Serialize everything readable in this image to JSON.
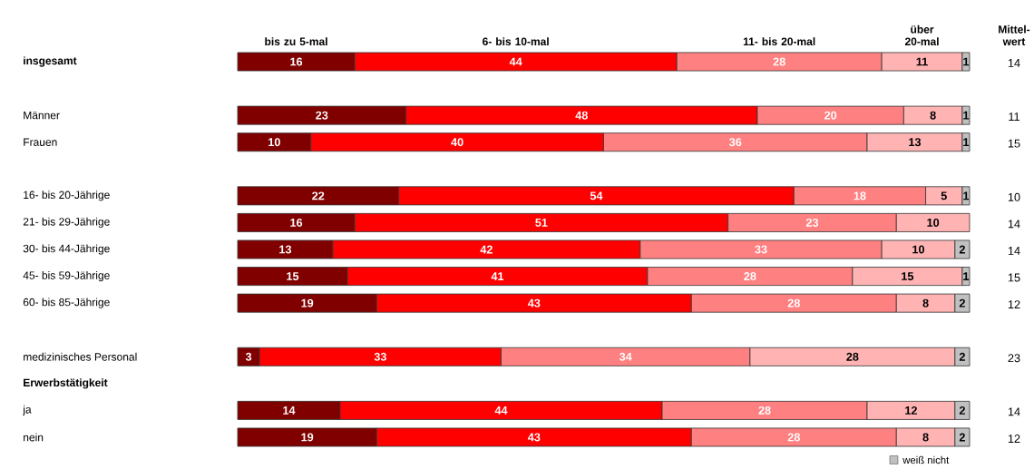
{
  "chart_data": {
    "type": "bar",
    "orientation": "horizontal",
    "stacked": true,
    "data_labels": true,
    "legend": "bottom right",
    "categories": [
      "insgesamt",
      null,
      "Männer",
      "Frauen",
      null,
      "16- bis 20-Jährige",
      "21- bis 29-Jährige",
      "30- bis 44-Jährige",
      "45- bis 59-Jährige",
      "60- bis 85-Jährige",
      null,
      "medizinisches Personal",
      "Erwerbstätigkeit",
      "ja",
      "nein"
    ],
    "series": [
      {
        "name": "bis zu 5-mal",
        "color": "#800000",
        "values": [
          16,
          null,
          23,
          10,
          null,
          22,
          16,
          13,
          15,
          19,
          null,
          3,
          null,
          14,
          19
        ]
      },
      {
        "name": "6- bis 10-mal",
        "color": "#ff0000",
        "values": [
          44,
          null,
          48,
          40,
          null,
          54,
          51,
          42,
          41,
          43,
          null,
          33,
          null,
          44,
          43
        ]
      },
      {
        "name": "11- bis 20-mal",
        "color": "#ff8080",
        "values": [
          28,
          null,
          20,
          36,
          null,
          18,
          23,
          33,
          28,
          28,
          null,
          34,
          null,
          28,
          28
        ]
      },
      {
        "name": "über 20-mal",
        "color": "#ffb3b3",
        "values": [
          11,
          null,
          8,
          13,
          null,
          5,
          10,
          10,
          15,
          8,
          null,
          28,
          null,
          12,
          8
        ]
      },
      {
        "name": "weiß nicht",
        "color": "#c0c0c0",
        "values": [
          1,
          null,
          1,
          1,
          null,
          1,
          null,
          2,
          1,
          2,
          null,
          2,
          null,
          2,
          2
        ]
      }
    ],
    "annotations": [
      "Mittel- wert",
      "14",
      "11",
      "15",
      "10",
      "14",
      "14",
      "15",
      "12",
      "23",
      "14",
      "12"
    ]
  }
}
